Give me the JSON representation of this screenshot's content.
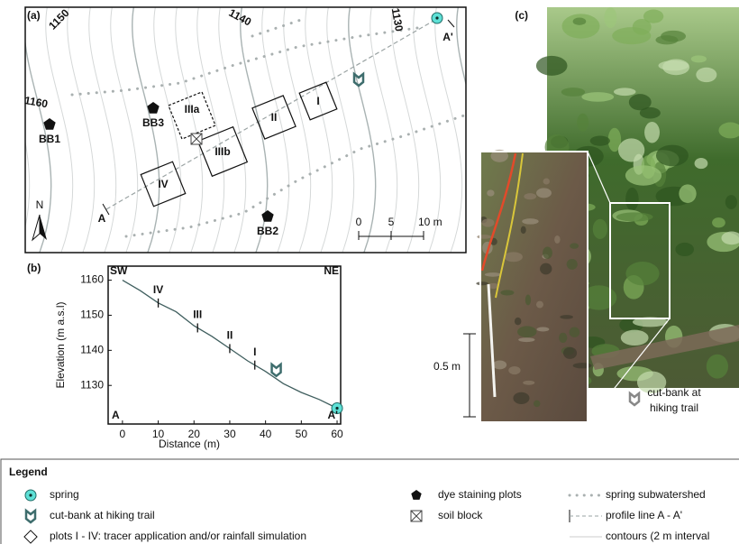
{
  "panel_a": {
    "label": "(a)",
    "contour_labels": [
      "1150",
      "1140",
      "1130",
      "1160"
    ],
    "plots": [
      "I",
      "II",
      "IIIa",
      "IIIb",
      "IV"
    ],
    "dye_plots": [
      "BB1",
      "BB2",
      "BB3"
    ],
    "profile_ends": [
      "A",
      "A'"
    ],
    "north": "N",
    "scale_ticks": [
      0,
      5,
      {
        "value": 10,
        "label": "10 m"
      }
    ]
  },
  "panel_b": {
    "label": "(b)",
    "ylabel": "Elevation (m a.s.l)",
    "xlabel": "Distance (m)",
    "corners": [
      "SW",
      "NE",
      "A",
      "A'"
    ],
    "x": [
      0,
      5,
      10,
      15,
      20,
      25,
      30,
      35,
      40,
      45,
      50,
      55,
      60
    ],
    "values": [
      1160,
      1157,
      1153.5,
      1151,
      1147,
      1144,
      1140.5,
      1137,
      1134,
      1130.5,
      1128,
      1126,
      1123.5
    ],
    "xlim": [
      -4,
      61
    ],
    "ylim": [
      1119,
      1164
    ],
    "xticks": [
      0,
      10,
      20,
      30,
      40,
      50,
      60
    ],
    "yticks": [
      1130,
      1140,
      1150,
      1160
    ],
    "plot_positions": [
      10,
      21,
      30,
      37
    ],
    "plot_labels": [
      "IV",
      "III",
      "II",
      "I"
    ],
    "cut_bank_x": 43,
    "spring_x": 60
  },
  "panel_c": {
    "label": "(c)",
    "scale_label": "0.5 m",
    "caption": [
      "cut-bank at",
      "hiking trail"
    ]
  },
  "legend": {
    "title": "Legend",
    "items": [
      "spring",
      "cut-bank at hiking trail",
      "plots I - IV: tracer application and/or rainfall simulation",
      "dye staining plots",
      "soil block",
      "spring subwatershed",
      "profile line A - A'",
      "contours (2 m interval"
    ]
  }
}
